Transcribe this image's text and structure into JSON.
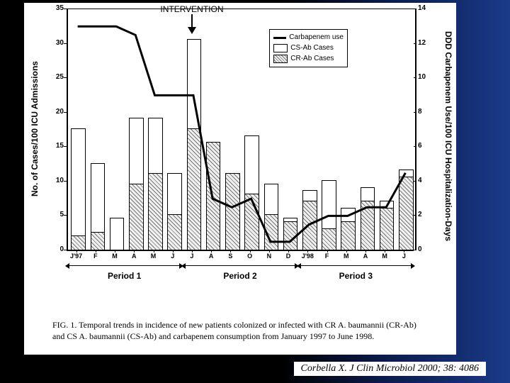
{
  "slide": {
    "bg_gradient": [
      "#000000",
      "#0a1a4a",
      "#1a3a8a"
    ]
  },
  "chart": {
    "type": "bar+line",
    "intervention_label": "INTERVENTION",
    "intervention_x_index": 6,
    "legend": {
      "line_label": "Carbapenem use",
      "cs_label": "CS-Ab Cases",
      "cr_label": "CR-Ab Cases"
    },
    "y_left": {
      "label": "No. of Cases/100 ICU Admissions",
      "min": 0,
      "max": 35,
      "ticks": [
        0,
        5,
        10,
        15,
        20,
        25,
        30,
        35
      ],
      "fontsize": 12
    },
    "y_right": {
      "label": "DDD Carbapenem Use/100 ICU Hospitalization-Days",
      "min": 0,
      "max": 14,
      "ticks": [
        0,
        2,
        4,
        6,
        8,
        10,
        12,
        14
      ],
      "fontsize": 12
    },
    "x_categories": [
      "J'97",
      "F",
      "M",
      "A",
      "M",
      "J",
      "J",
      "A",
      "S",
      "O",
      "N",
      "D",
      "J'98",
      "F",
      "M",
      "A",
      "M",
      "J"
    ],
    "cs_values": [
      17.5,
      12.5,
      4.5,
      19,
      19,
      11,
      30.5,
      15.5,
      11,
      16.5,
      9.5,
      4.5,
      8.5,
      10,
      6,
      9,
      7,
      11.5
    ],
    "cr_values": [
      2,
      2.5,
      0,
      9.5,
      11,
      5,
      17.5,
      15.5,
      11,
      8,
      5,
      4,
      7,
      3,
      4,
      7,
      6,
      10.5
    ],
    "line_values": [
      13,
      13,
      13,
      12.5,
      9,
      9,
      9,
      3,
      2.5,
      3,
      0.5,
      0.5,
      1.5,
      2,
      2,
      2.5,
      2.5,
      4.5
    ],
    "bar_width": 0.68,
    "colors": {
      "cs_fill": "#ffffff",
      "cr_hatch": "#888888",
      "line": "#000000",
      "axis": "#000000",
      "background": "#ffffff"
    },
    "line_width": 3,
    "periods": [
      {
        "label": "Period 1",
        "start": 0,
        "end": 5
      },
      {
        "label": "Period 2",
        "start": 6,
        "end": 11
      },
      {
        "label": "Period 3",
        "start": 12,
        "end": 17
      }
    ]
  },
  "caption": "FIG. 1. Temporal trends in incidence of new patients colonized or infected with CR A. baumannii (CR-Ab) and CS A. baumannii (CS-Ab) and carbapenem consumption from January 1997 to June 1998.",
  "citation": "Corbella X. J Clin Microbiol 2000; 38: 4086"
}
